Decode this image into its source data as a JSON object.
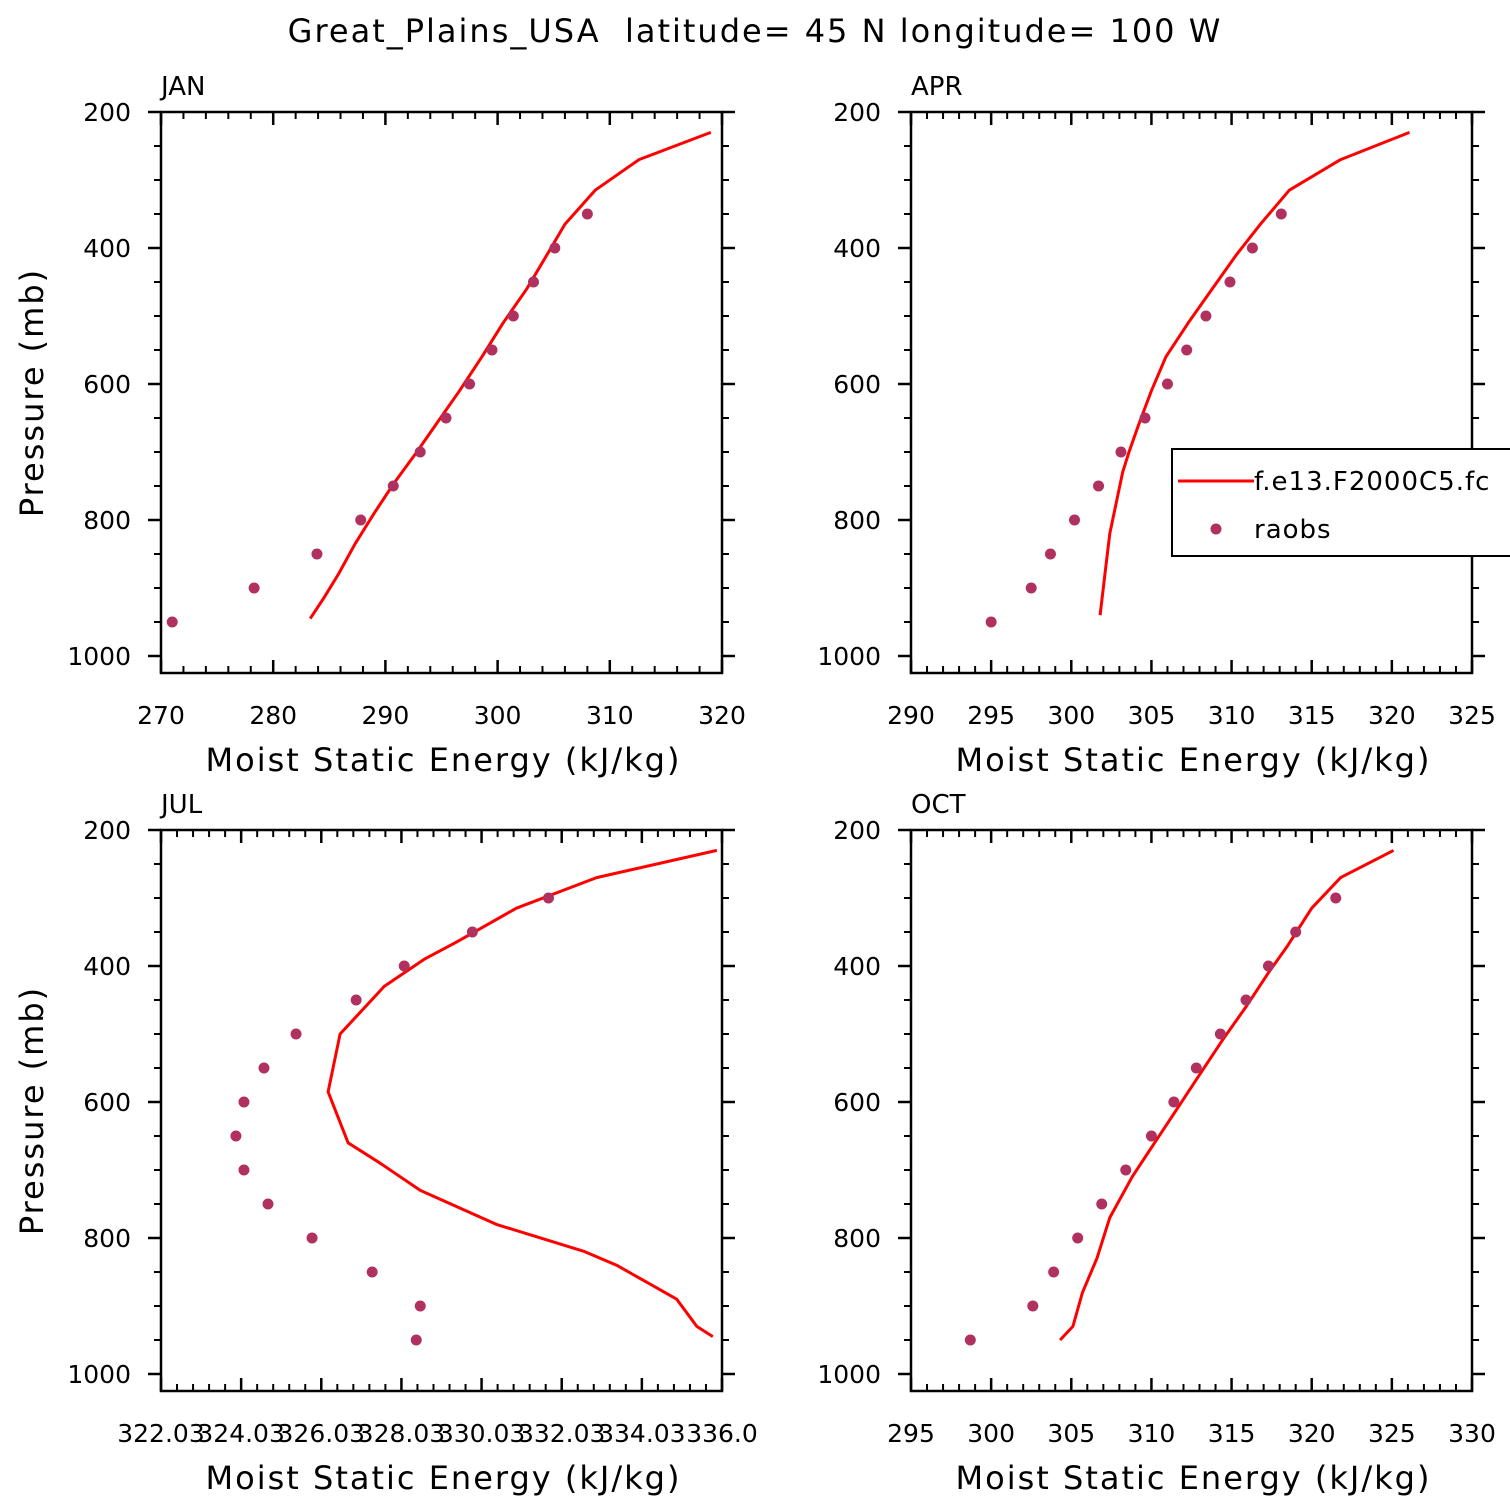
{
  "figure": {
    "title": "Great_Plains_USA  latitude= 45 N longitude= 100 W"
  },
  "colors": {
    "model_line": "#ff0000",
    "obs_marker": "#b03060",
    "axis": "#000000"
  },
  "chart_data": [
    {
      "type": "line",
      "title": "JAN",
      "xlabel": "Moist Static Energy (kJ/kg)",
      "ylabel": "Pressure (mb)",
      "xlim": [
        270,
        320
      ],
      "xticks": [
        270,
        280,
        290,
        300,
        310,
        320
      ],
      "xtick_labels": [
        "270",
        "280",
        "290",
        "300",
        "310",
        "320"
      ],
      "ylim": [
        1025,
        200
      ],
      "yticks": [
        200,
        400,
        600,
        800,
        1000
      ],
      "grid": false,
      "series": [
        {
          "kind": "line",
          "x": [
            319.0,
            312.6,
            308.7,
            306.0,
            304.4,
            302.6,
            300.5,
            298.6,
            296.6,
            294.7,
            292.8,
            290.8,
            289.0,
            287.3,
            285.8,
            284.5,
            283.3
          ],
          "y": [
            230,
            270,
            315,
            365,
            410,
            460,
            510,
            560,
            610,
            655,
            700,
            745,
            790,
            835,
            880,
            915,
            945
          ]
        },
        {
          "kind": "scatter",
          "marker": "circle",
          "x": [
            271.0,
            278.3,
            283.9,
            287.8,
            290.7,
            293.1,
            295.4,
            297.5,
            299.5,
            301.4,
            303.2,
            305.1,
            308.0
          ],
          "y": [
            950,
            900,
            850,
            800,
            750,
            700,
            650,
            600,
            550,
            500,
            450,
            400,
            350
          ]
        }
      ]
    },
    {
      "type": "line",
      "title": "APR",
      "xlabel": "Moist Static Energy (kJ/kg)",
      "ylabel": "",
      "xlim": [
        290,
        325
      ],
      "xticks": [
        290,
        295,
        300,
        305,
        310,
        315,
        320,
        325
      ],
      "xtick_labels": [
        "290",
        "295",
        "300",
        "305",
        "310",
        "315",
        "320",
        "325"
      ],
      "ylim": [
        1025,
        200
      ],
      "yticks": [
        200,
        400,
        600,
        800,
        1000
      ],
      "grid": false,
      "legend": {
        "placement": "right",
        "entries": [
          {
            "label": "f.e13.F2000C5.fc",
            "kind": "line"
          },
          {
            "label": "raobs",
            "kind": "marker"
          }
        ]
      },
      "series": [
        {
          "kind": "line",
          "x": [
            321.1,
            316.8,
            313.6,
            311.8,
            310.3,
            308.8,
            307.3,
            305.9,
            305.0,
            304.2,
            303.6,
            303.2,
            302.8,
            302.4,
            302.1,
            301.8
          ],
          "y": [
            230,
            270,
            315,
            365,
            410,
            460,
            510,
            560,
            610,
            660,
            700,
            730,
            775,
            820,
            880,
            940
          ]
        },
        {
          "kind": "scatter",
          "marker": "circle",
          "x": [
            295.0,
            297.5,
            298.7,
            300.2,
            301.7,
            303.1,
            304.6,
            306.0,
            307.2,
            308.4,
            309.9,
            311.3,
            313.1
          ],
          "y": [
            950,
            900,
            850,
            800,
            750,
            700,
            650,
            600,
            550,
            500,
            450,
            400,
            350
          ]
        }
      ]
    },
    {
      "type": "line",
      "title": "JUL",
      "xlabel": "Moist Static Energy (kJ/kg)",
      "ylabel": "Pressure (mb)",
      "xlim": [
        322.03,
        336.03
      ],
      "xticks": [
        322.03,
        324.03,
        326.03,
        328.03,
        330.03,
        332.03,
        334.03,
        336.03
      ],
      "xtick_labels": [
        "322.03",
        "324.03",
        "326.03",
        "328.03",
        "330.03",
        "332.03",
        "334.03",
        "336.0"
      ],
      "ylim": [
        1025,
        200
      ],
      "yticks": [
        200,
        400,
        600,
        800,
        1000
      ],
      "grid": false,
      "series": [
        {
          "kind": "line",
          "x": [
            335.9,
            332.9,
            330.9,
            329.4,
            328.6,
            327.6,
            326.5,
            326.2,
            326.7,
            327.5,
            328.5,
            330.4,
            332.6,
            333.4,
            334.3,
            334.9,
            335.4,
            335.8
          ],
          "y": [
            230,
            270,
            315,
            365,
            390,
            430,
            500,
            585,
            660,
            690,
            730,
            780,
            820,
            840,
            870,
            890,
            930,
            945
          ]
        },
        {
          "kind": "scatter",
          "marker": "circle",
          "x": [
            328.4,
            328.5,
            327.3,
            325.8,
            324.7,
            324.1,
            323.9,
            324.1,
            324.6,
            325.4,
            326.9,
            328.1,
            329.8,
            331.7
          ],
          "y": [
            950,
            900,
            850,
            800,
            750,
            700,
            650,
            600,
            550,
            500,
            450,
            400,
            350,
            300
          ]
        }
      ]
    },
    {
      "type": "line",
      "title": "OCT",
      "xlabel": "Moist Static Energy (kJ/kg)",
      "ylabel": "",
      "xlim": [
        295,
        330
      ],
      "xticks": [
        295,
        300,
        305,
        310,
        315,
        320,
        325,
        330
      ],
      "xtick_labels": [
        "295",
        "300",
        "305",
        "310",
        "315",
        "320",
        "325",
        "330"
      ],
      "ylim": [
        1025,
        200
      ],
      "yticks": [
        200,
        400,
        600,
        800,
        1000
      ],
      "grid": false,
      "series": [
        {
          "kind": "line",
          "x": [
            325.1,
            321.8,
            320.0,
            318.5,
            317.3,
            315.9,
            314.4,
            313.0,
            311.6,
            310.2,
            308.8,
            307.4,
            306.6,
            305.7,
            305.1,
            304.3
          ],
          "y": [
            230,
            270,
            315,
            370,
            410,
            460,
            510,
            560,
            610,
            660,
            710,
            770,
            830,
            880,
            930,
            950
          ]
        },
        {
          "kind": "scatter",
          "marker": "circle",
          "x": [
            298.7,
            302.6,
            303.9,
            305.4,
            306.9,
            308.4,
            310.0,
            311.4,
            312.8,
            314.3,
            315.9,
            317.3,
            319.0,
            321.5
          ],
          "y": [
            950,
            900,
            850,
            800,
            750,
            700,
            650,
            600,
            550,
            500,
            450,
            400,
            350,
            300
          ]
        }
      ]
    }
  ]
}
